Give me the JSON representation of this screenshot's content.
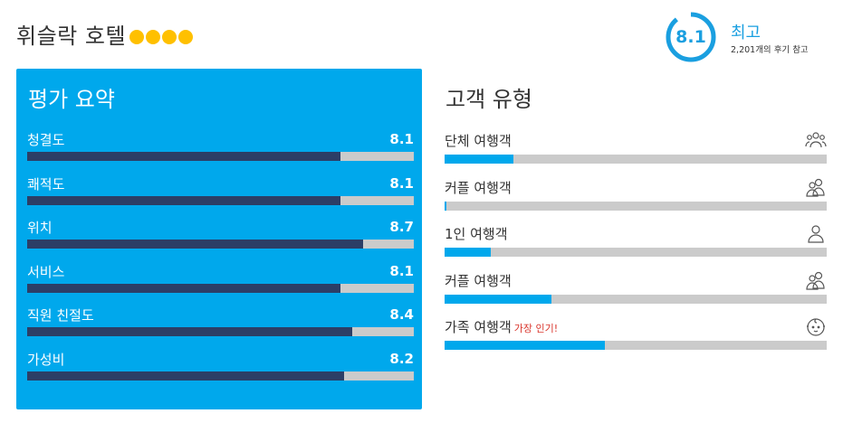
{
  "hotel": {
    "name": "휘슬락 호텔",
    "stars": 4,
    "star_color": "#ffc000"
  },
  "score": {
    "value": "8.1",
    "word": "최고",
    "reviews_text": "2,201개의 후기 참고",
    "accent": "#1a9fe0"
  },
  "summary": {
    "title": "평가 요약",
    "items": [
      {
        "label": "청결도",
        "value": "8.1",
        "fraction": 0.81
      },
      {
        "label": "쾌적도",
        "value": "8.1",
        "fraction": 0.81
      },
      {
        "label": "위치",
        "value": "8.7",
        "fraction": 0.87
      },
      {
        "label": "서비스",
        "value": "8.1",
        "fraction": 0.81
      },
      {
        "label": "직원 친절도",
        "value": "8.4",
        "fraction": 0.84
      },
      {
        "label": "가성비",
        "value": "8.2",
        "fraction": 0.82
      }
    ]
  },
  "guest_types": {
    "title": "고객 유형",
    "items": [
      {
        "label": "단체 여행객",
        "icon": "group-icon",
        "fraction": 0.18,
        "badge": ""
      },
      {
        "label": "커플 여행객",
        "icon": "couple-icon",
        "fraction": 0.005,
        "badge": ""
      },
      {
        "label": "1인 여행객",
        "icon": "solo-icon",
        "fraction": 0.12,
        "badge": ""
      },
      {
        "label": "커플 여행객",
        "icon": "couple-icon",
        "fraction": 0.28,
        "badge": ""
      },
      {
        "label": "가족 여행객",
        "icon": "family-baby-icon",
        "fraction": 0.42,
        "badge": "가장 인기!"
      }
    ]
  }
}
